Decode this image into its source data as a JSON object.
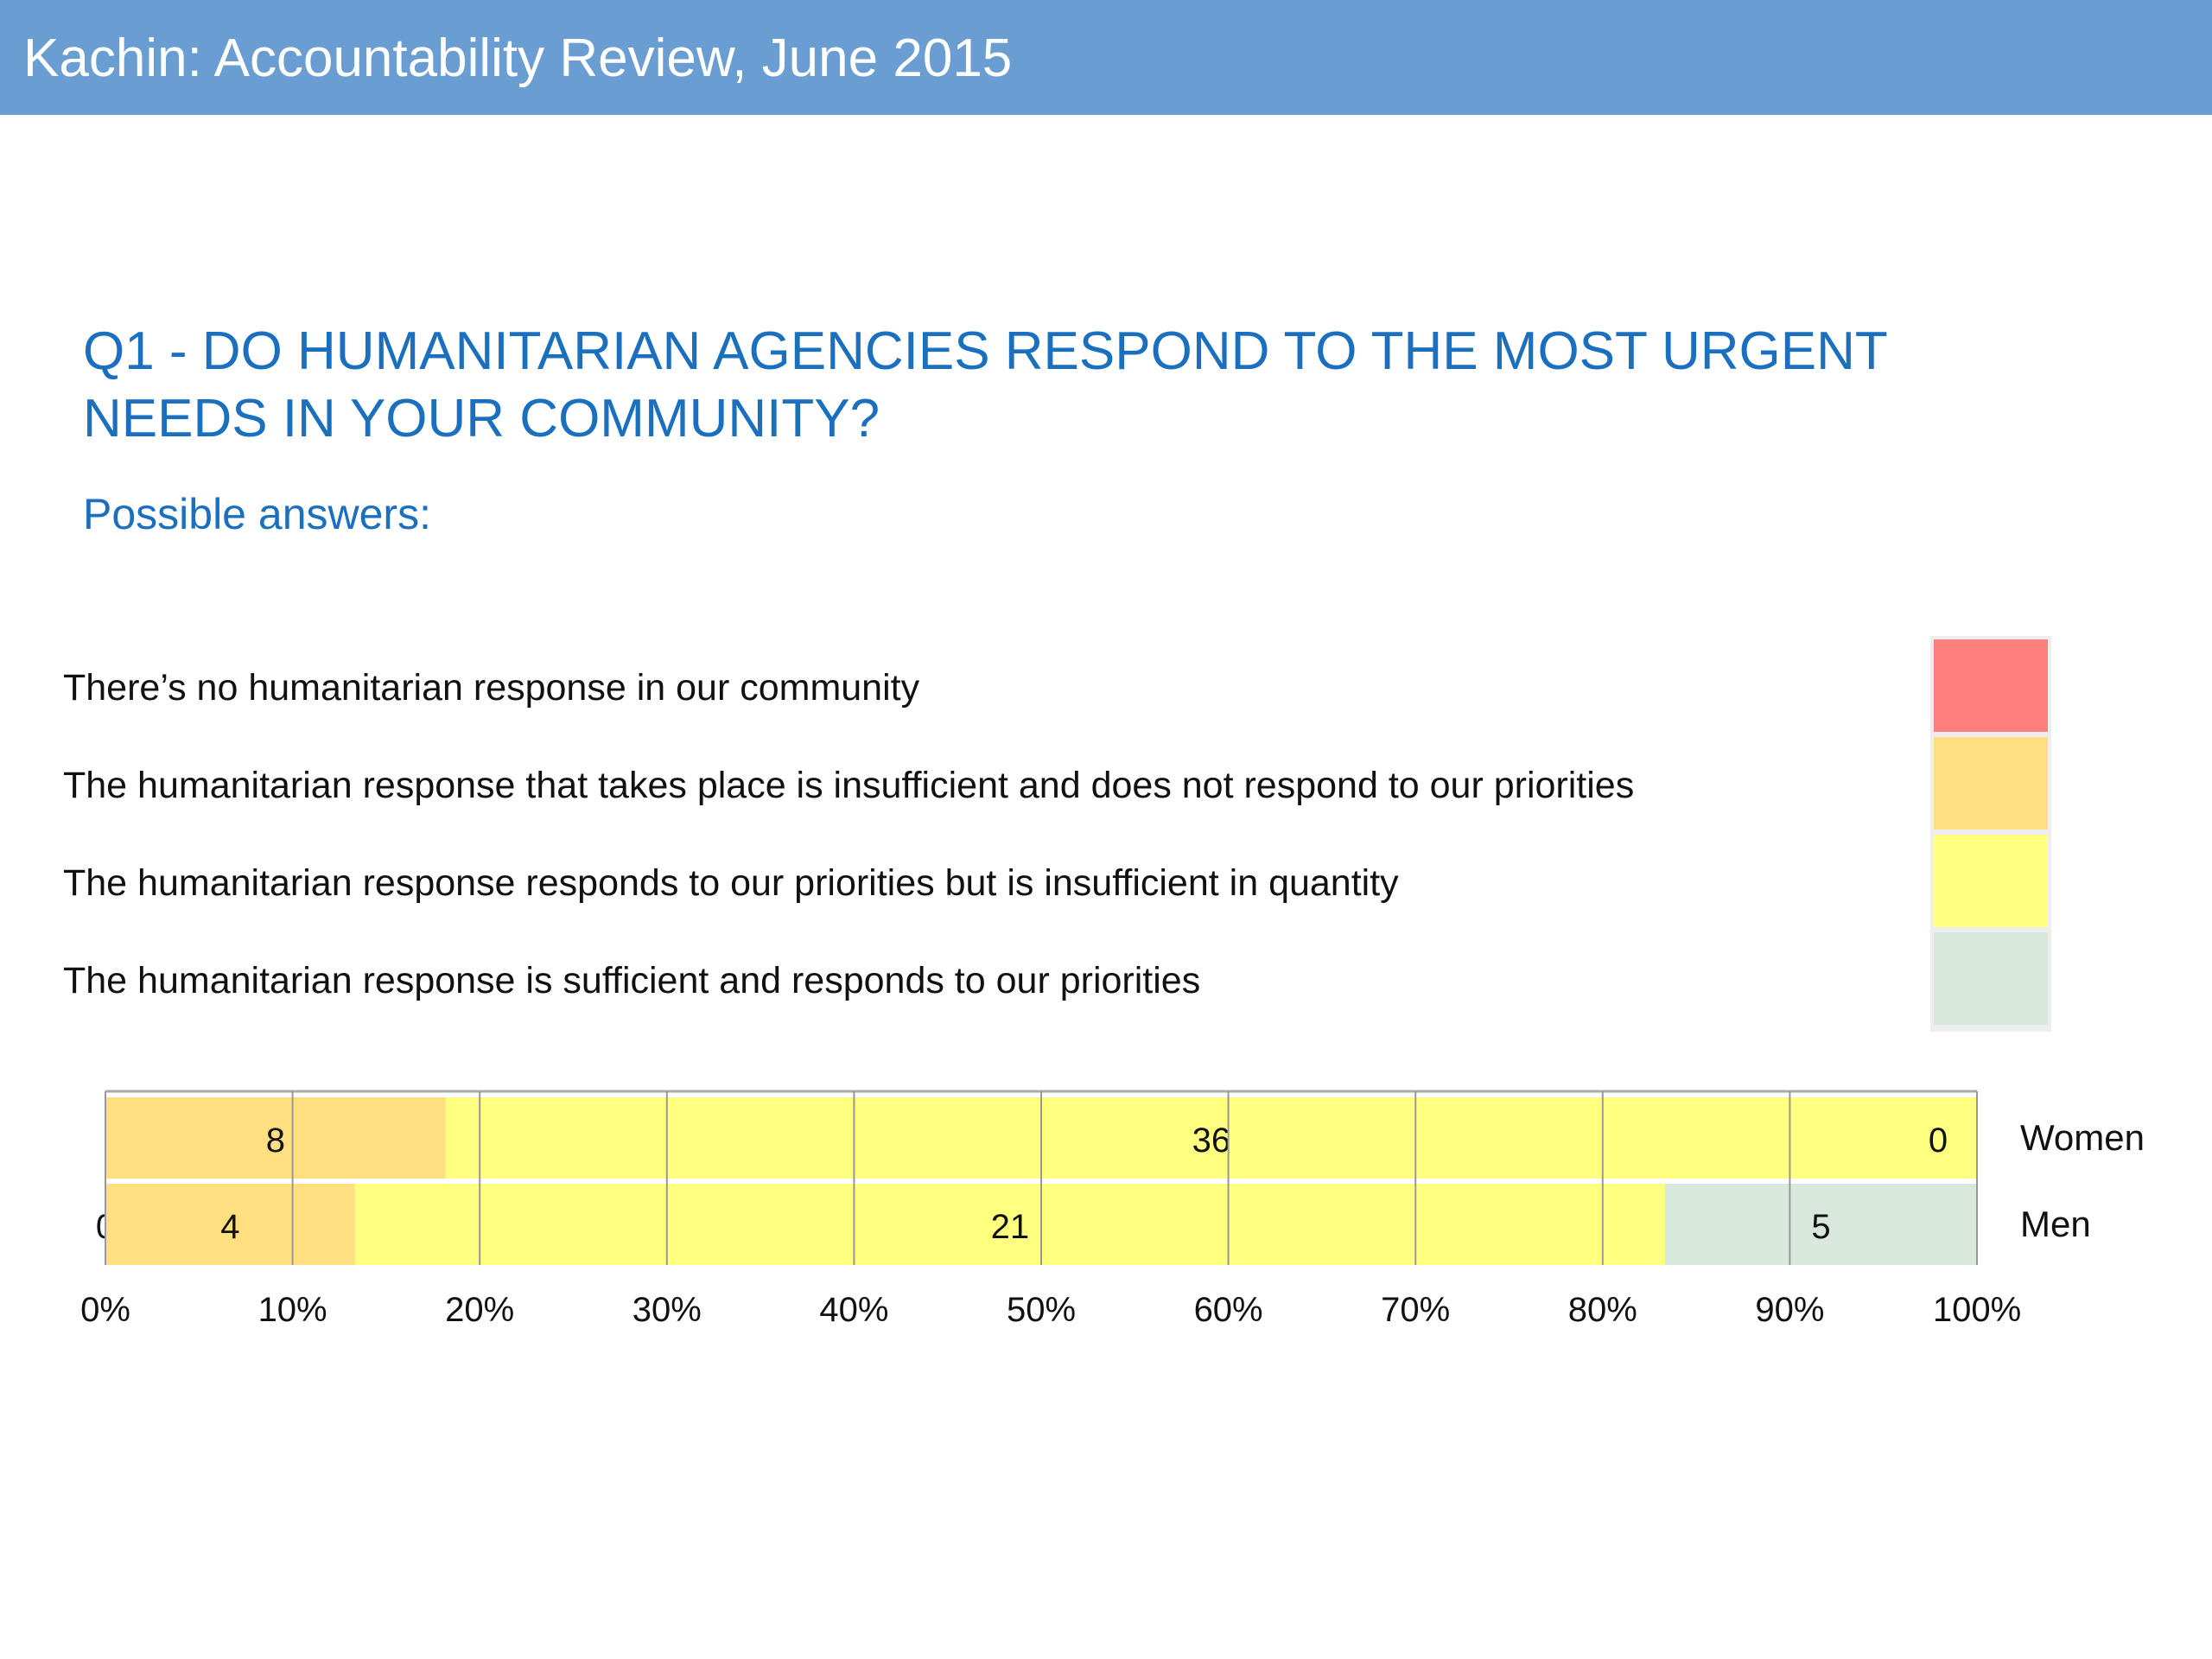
{
  "header": {
    "title": "Kachin: Accountability Review, June 2015"
  },
  "question": {
    "line1": "Q1 - DO HUMANITARIAN AGENCIES RESPOND TO THE MOST URGENT",
    "line2": "NEEDS IN YOUR COMMUNITY?",
    "possible_answers_label": "Possible answers:"
  },
  "answers": [
    {
      "label": "There’s no humanitarian response in our community",
      "color": "#ff7f7f"
    },
    {
      "label": "The humanitarian response that takes place is insufficient and does not respond to our priorities",
      "color": "#ffdf80"
    },
    {
      "label": "The humanitarian response responds to our priorities but is insufficient in quantity",
      "color": "#ffff80"
    },
    {
      "label": "The humanitarian response is sufficient and responds to our priorities",
      "color": "#d9e8dc"
    }
  ],
  "chart_data": {
    "type": "bar",
    "orientation": "horizontal",
    "stacked": "percent",
    "categories": [
      "Women",
      "Men"
    ],
    "series": [
      {
        "values": [
          0,
          0
        ],
        "color": "#ff7f7f"
      },
      {
        "values": [
          8,
          4
        ],
        "color": "#ffdf80"
      },
      {
        "values": [
          36,
          21
        ],
        "color": "#ffff80"
      },
      {
        "values": [
          0,
          5
        ],
        "color": "#d9e8dc"
      }
    ],
    "xlim": [
      0,
      100
    ],
    "x_ticks": [
      "0%",
      "10%",
      "20%",
      "30%",
      "40%",
      "50%",
      "60%",
      "70%",
      "80%",
      "90%",
      "100%"
    ],
    "grid": true
  }
}
